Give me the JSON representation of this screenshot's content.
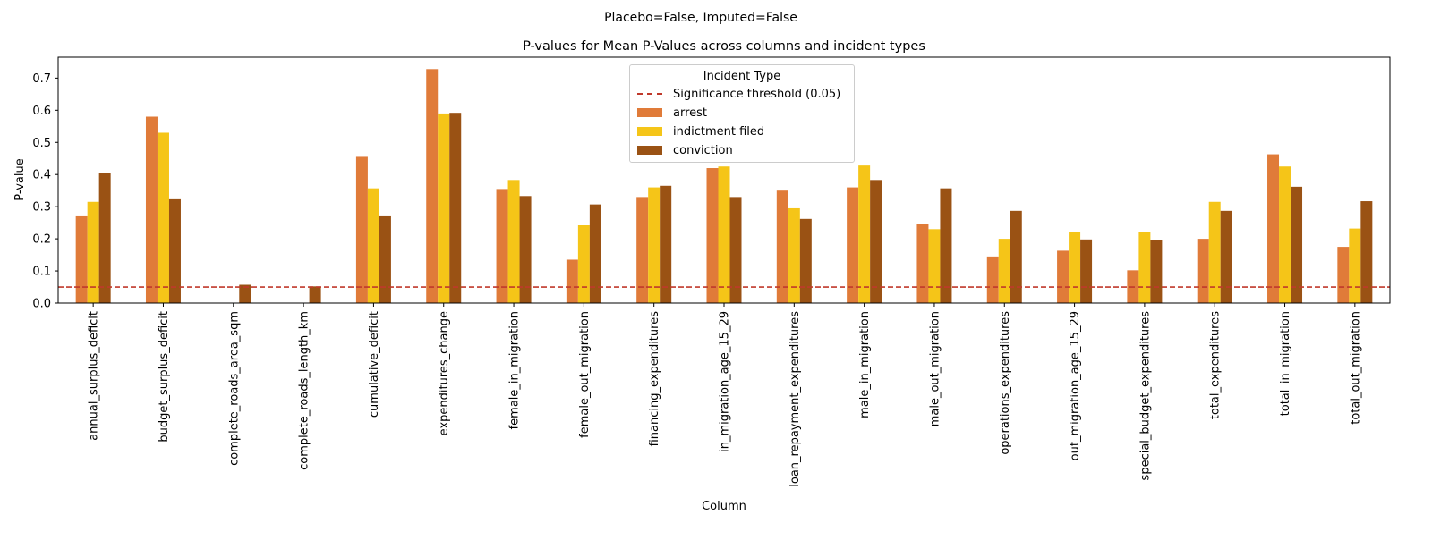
{
  "suptitle": "Placebo=False, Imputed=False",
  "chart_data": {
    "type": "bar",
    "title": "P-values for Mean P-Values across columns and incident types",
    "xlabel": "Column",
    "ylabel": "P-value",
    "ylim": [
      0,
      0.765
    ],
    "yticks": [
      0.0,
      0.1,
      0.2,
      0.3,
      0.4,
      0.5,
      0.6,
      0.7
    ],
    "ytick_labels": [
      "0.0",
      "0.1",
      "0.2",
      "0.3",
      "0.4",
      "0.5",
      "0.6",
      "0.7"
    ],
    "grid": false,
    "legend_title": "Incident Type",
    "legend_position": "top-center",
    "categories": [
      "annual_surplus_deficit",
      "budget_surplus_deficit",
      "complete_roads_area_sqm",
      "complete_roads_length_km",
      "cumulative_deficit",
      "expenditures_change",
      "female_in_migration",
      "female_out_migration",
      "financing_expenditures",
      "in_migration_age_15_29",
      "loan_repayment_expenditures",
      "male_in_migration",
      "male_out_migration",
      "operations_expenditures",
      "out_migration_age_15_29",
      "special_budget_expenditures",
      "total_expenditures",
      "total_in_migration",
      "total_out_migration"
    ],
    "series": [
      {
        "name": "arrest",
        "color": "#e07b39",
        "values": [
          0.27,
          0.58,
          null,
          null,
          0.455,
          0.728,
          0.355,
          0.135,
          0.33,
          0.42,
          0.35,
          0.36,
          0.247,
          0.145,
          0.163,
          0.102,
          0.2,
          0.463,
          0.175
        ]
      },
      {
        "name": "indictment filed",
        "color": "#f5c518",
        "values": [
          0.315,
          0.53,
          null,
          null,
          0.357,
          0.59,
          0.383,
          0.242,
          0.36,
          0.425,
          0.295,
          0.428,
          0.23,
          0.2,
          0.222,
          0.22,
          0.315,
          0.425,
          0.232
        ]
      },
      {
        "name": "conviction",
        "color": "#9a5214",
        "values": [
          0.405,
          0.323,
          0.057,
          0.052,
          0.27,
          0.592,
          0.333,
          0.307,
          0.365,
          0.33,
          0.262,
          0.383,
          0.357,
          0.287,
          0.198,
          0.195,
          0.287,
          0.362,
          0.317
        ]
      }
    ],
    "threshold": {
      "label": "Significance threshold (0.05)",
      "value": 0.05,
      "color": "#c0392b"
    }
  }
}
